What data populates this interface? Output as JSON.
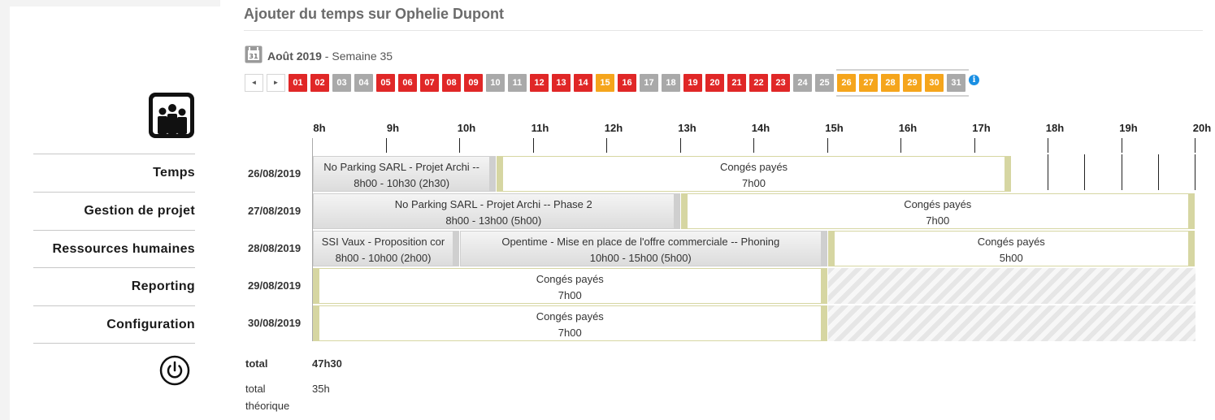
{
  "sidebar": {
    "items": [
      {
        "label": "Temps"
      },
      {
        "label": "Gestion de projet"
      },
      {
        "label": "Ressources humaines"
      },
      {
        "label": "Reporting"
      },
      {
        "label": "Configuration"
      }
    ],
    "logo_icon": "people-group-icon",
    "logout_icon": "power-icon"
  },
  "header": {
    "title": "Ajouter du temps sur Ophelie Dupont"
  },
  "period": {
    "month": "Août 2019",
    "separator": " - ",
    "week": "Semaine 35",
    "calendar_icon": "calendar-31-icon"
  },
  "nav": {
    "prev": "◄",
    "next": "►"
  },
  "days": [
    {
      "label": "01",
      "status": "red"
    },
    {
      "label": "02",
      "status": "red"
    },
    {
      "label": "03",
      "status": "grey"
    },
    {
      "label": "04",
      "status": "grey"
    },
    {
      "label": "05",
      "status": "red"
    },
    {
      "label": "06",
      "status": "red"
    },
    {
      "label": "07",
      "status": "red"
    },
    {
      "label": "08",
      "status": "red"
    },
    {
      "label": "09",
      "status": "red"
    },
    {
      "label": "10",
      "status": "grey"
    },
    {
      "label": "11",
      "status": "grey"
    },
    {
      "label": "12",
      "status": "red"
    },
    {
      "label": "13",
      "status": "red"
    },
    {
      "label": "14",
      "status": "red"
    },
    {
      "label": "15",
      "status": "orange"
    },
    {
      "label": "16",
      "status": "red"
    },
    {
      "label": "17",
      "status": "grey"
    },
    {
      "label": "18",
      "status": "grey"
    },
    {
      "label": "19",
      "status": "red"
    },
    {
      "label": "20",
      "status": "red"
    },
    {
      "label": "21",
      "status": "red"
    },
    {
      "label": "22",
      "status": "red"
    },
    {
      "label": "23",
      "status": "red"
    },
    {
      "label": "24",
      "status": "grey"
    },
    {
      "label": "25",
      "status": "grey"
    },
    {
      "label": "26",
      "status": "orange"
    },
    {
      "label": "27",
      "status": "orange"
    },
    {
      "label": "28",
      "status": "orange"
    },
    {
      "label": "29",
      "status": "orange"
    },
    {
      "label": "30",
      "status": "orange"
    },
    {
      "label": "31",
      "status": "grey"
    }
  ],
  "info_icon": "i",
  "hours": [
    "8h",
    "9h",
    "10h",
    "11h",
    "12h",
    "13h",
    "14h",
    "15h",
    "16h",
    "17h",
    "18h",
    "19h",
    "20h"
  ],
  "rows": [
    {
      "date": "26/08/2019",
      "blocks": [
        {
          "type": "project",
          "start": 8,
          "end": 10.5,
          "title": "No Parking SARL - Projet Archi --",
          "time": "8h00 - 10h30 (2h30)"
        },
        {
          "type": "conge",
          "start": 10.5,
          "end": 17.5,
          "title": "Congés payés",
          "time": "7h00"
        }
      ]
    },
    {
      "date": "27/08/2019",
      "blocks": [
        {
          "type": "project",
          "start": 8,
          "end": 13,
          "title": "No Parking SARL - Projet Archi -- Phase 2",
          "time": "8h00 - 13h00 (5h00)"
        },
        {
          "type": "conge",
          "start": 13,
          "end": 20,
          "title": "Congés payés",
          "time": "7h00"
        }
      ]
    },
    {
      "date": "28/08/2019",
      "blocks": [
        {
          "type": "project",
          "start": 8,
          "end": 10,
          "title": "SSI Vaux - Proposition cor",
          "time": "8h00 - 10h00 (2h00)"
        },
        {
          "type": "project",
          "start": 10,
          "end": 15,
          "title": "Opentime - Mise en place de l'offre commerciale -- Phoning",
          "time": "10h00 - 15h00 (5h00)"
        },
        {
          "type": "conge",
          "start": 15,
          "end": 20,
          "title": "Congés payés",
          "time": "5h00"
        }
      ]
    },
    {
      "date": "29/08/2019",
      "blocks": [
        {
          "type": "conge",
          "start": 8,
          "end": 15,
          "title": "Congés payés",
          "time": "7h00"
        }
      ],
      "hatched_from": 15
    },
    {
      "date": "30/08/2019",
      "blocks": [
        {
          "type": "conge",
          "start": 8,
          "end": 15,
          "title": "Congés payés",
          "time": "7h00"
        }
      ],
      "hatched_from": 15
    }
  ],
  "totals": {
    "total_label": "total",
    "total_value": "47h30",
    "theoretical_label_1": "total",
    "theoretical_label_2": "théorique",
    "theoretical_value": "35h"
  }
}
